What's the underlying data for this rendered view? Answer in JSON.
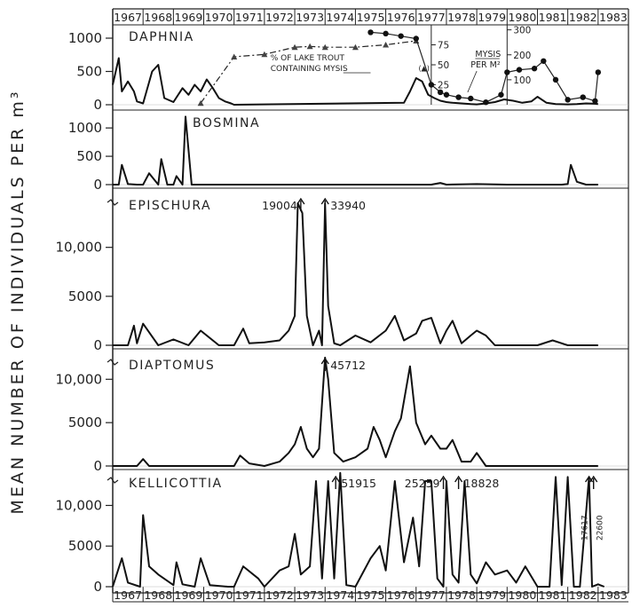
{
  "chart_data": {
    "type": "line",
    "ylabel": "MEAN NUMBER OF INDIVIDUALS PER m³",
    "years": [
      "1967",
      "1968",
      "1969",
      "1970",
      "1971",
      "1972",
      "1973",
      "1974",
      "1975",
      "1976",
      "1977",
      "1978",
      "1979",
      "1980",
      "1981",
      "1982",
      "1983"
    ],
    "panels": [
      {
        "name": "DAPHNIA",
        "ylim": [
          0,
          1200
        ],
        "yticks": [
          0,
          500,
          1000
        ],
        "ytick_labels": [
          "0",
          "500",
          "1000"
        ],
        "x": [
          1967.0,
          1967.2,
          1967.3,
          1967.5,
          1967.7,
          1967.8,
          1968.0,
          1968.3,
          1968.5,
          1968.7,
          1969.0,
          1969.3,
          1969.5,
          1969.7,
          1969.9,
          1970.1,
          1970.3,
          1970.5,
          1970.7,
          1970.9,
          1971.0,
          1976.6,
          1976.8,
          1977.0,
          1977.2,
          1977.4,
          1977.6,
          1977.8,
          1978.0,
          1978.2,
          1978.5,
          1978.8,
          1979.0,
          1979.3,
          1979.6,
          1979.9,
          1980.2,
          1980.5,
          1980.8,
          1981.0,
          1981.3,
          1981.6,
          1982.0,
          1982.3,
          1982.6,
          1982.9,
          1983.0
        ],
        "y": [
          300,
          700,
          200,
          350,
          200,
          50,
          20,
          500,
          600,
          100,
          40,
          250,
          150,
          300,
          200,
          380,
          250,
          100,
          50,
          20,
          0,
          30,
          200,
          400,
          350,
          150,
          100,
          60,
          40,
          30,
          20,
          10,
          5,
          20,
          40,
          80,
          60,
          30,
          50,
          120,
          30,
          10,
          5,
          10,
          20,
          15,
          10
        ],
        "series_name": "",
        "overlays": [
          {
            "name": "% OF LAKE TROUT CONTAINING MYSIS",
            "axis_label": "(▲)",
            "axis_ticks": [
              25,
              50,
              75
            ],
            "x": [
              1969.9,
              1971.0,
              1972.0,
              1973.0,
              1973.5,
              1974.0,
              1975.0,
              1976.0,
              1977.0
            ],
            "y": [
              2,
              60,
              63,
              72,
              73,
              72,
              72,
              75,
              80
            ]
          },
          {
            "name": "MYSIS PER M²",
            "axis_ticks": [
              100,
              200,
              300
            ],
            "x": [
              1975.5,
              1976.0,
              1976.5,
              1977.0,
              1977.5,
              1977.8,
              1978.0,
              1978.4,
              1978.8,
              1979.3,
              1979.8,
              1980.0,
              1980.4,
              1980.9,
              1981.2,
              1981.6,
              1982.0,
              1982.5,
              1982.9,
              1983.0
            ],
            "y": [
              290,
              285,
              275,
              265,
              80,
              50,
              40,
              30,
              25,
              10,
              40,
              130,
              140,
              145,
              175,
              100,
              20,
              30,
              15,
              130
            ]
          }
        ],
        "annotations": [
          "% OF LAKE TROUT",
          "CONTAINING MYSIS",
          "MYSIS",
          "PER M²"
        ]
      },
      {
        "name": "BOSMINA",
        "ylim": [
          0,
          1300
        ],
        "yticks": [
          0,
          500,
          1000
        ],
        "ytick_labels": [
          "0",
          "500",
          "1000"
        ],
        "x": [
          1967.0,
          1967.2,
          1967.3,
          1967.5,
          1967.8,
          1968.0,
          1968.2,
          1968.5,
          1968.6,
          1968.8,
          1969.0,
          1969.1,
          1969.3,
          1969.4,
          1969.6,
          1970.0,
          1972.0,
          1975.0,
          1977.5,
          1977.8,
          1978.0,
          1979.0,
          1980.0,
          1981.0,
          1981.8,
          1982.0,
          1982.1,
          1982.3,
          1982.6,
          1983.0
        ],
        "y": [
          0,
          0,
          350,
          10,
          0,
          0,
          200,
          0,
          450,
          0,
          0,
          150,
          0,
          1200,
          0,
          0,
          0,
          0,
          0,
          30,
          0,
          10,
          0,
          0,
          0,
          10,
          350,
          50,
          0,
          0
        ]
      },
      {
        "name": "EPISCHURA",
        "ylim": [
          0,
          15500
        ],
        "yticks": [
          0,
          5000,
          10000
        ],
        "ytick_labels": [
          "0",
          "5000",
          "10,000"
        ],
        "x": [
          1967.0,
          1967.5,
          1967.7,
          1967.8,
          1968.0,
          1968.5,
          1969.0,
          1969.5,
          1969.9,
          1970.5,
          1971.0,
          1971.3,
          1971.5,
          1972.0,
          1972.5,
          1972.8,
          1973.0,
          1973.1,
          1973.25,
          1973.4,
          1973.6,
          1973.8,
          1973.9,
          1974.0,
          1974.1,
          1974.3,
          1974.5,
          1975.0,
          1975.5,
          1976.0,
          1976.3,
          1976.6,
          1977.0,
          1977.2,
          1977.5,
          1977.8,
          1978.0,
          1978.2,
          1978.5,
          1978.8,
          1979.0,
          1979.3,
          1979.6,
          1980.0,
          1981.0,
          1981.5,
          1982.0,
          1983.0
        ],
        "y": [
          0,
          0,
          2000,
          200,
          2200,
          0,
          600,
          0,
          1500,
          0,
          0,
          1700,
          200,
          300,
          500,
          1500,
          3000,
          14500,
          13500,
          3000,
          0,
          1500,
          0,
          14500,
          4000,
          200,
          0,
          1000,
          300,
          1500,
          3000,
          500,
          1200,
          2500,
          2800,
          200,
          1500,
          2500,
          200,
          1000,
          1500,
          1000,
          0,
          0,
          0,
          500,
          0,
          0
        ],
        "annotations": [
          {
            "label": "19004",
            "x": 1973.2
          },
          {
            "label": "33940",
            "x": 1974.0
          }
        ]
      },
      {
        "name": "DIAPTOMUS",
        "ylim": [
          0,
          13000
        ],
        "yticks": [
          0,
          5000,
          10000
        ],
        "ytick_labels": [
          "0",
          "5000",
          "10,000"
        ],
        "x": [
          1967.0,
          1967.8,
          1968.0,
          1968.2,
          1969.0,
          1970.0,
          1971.0,
          1971.2,
          1971.5,
          1972.0,
          1972.5,
          1972.8,
          1973.0,
          1973.2,
          1973.4,
          1973.6,
          1973.8,
          1974.0,
          1974.1,
          1974.3,
          1974.6,
          1975.0,
          1975.4,
          1975.6,
          1975.8,
          1976.0,
          1976.3,
          1976.5,
          1976.8,
          1977.0,
          1977.3,
          1977.5,
          1977.8,
          1978.0,
          1978.2,
          1978.5,
          1978.8,
          1979.0,
          1979.3,
          1980.0,
          1981.0,
          1983.0
        ],
        "y": [
          0,
          0,
          800,
          0,
          0,
          0,
          0,
          1200,
          300,
          0,
          500,
          1500,
          2500,
          4500,
          2000,
          1000,
          2000,
          12500,
          10000,
          1500,
          500,
          1000,
          2000,
          4500,
          3000,
          1000,
          4000,
          5500,
          11500,
          5000,
          2500,
          3500,
          2000,
          2000,
          3000,
          500,
          500,
          1500,
          0,
          0,
          0,
          0
        ],
        "annotations": [
          {
            "label": "45712",
            "x": 1974.0
          }
        ]
      },
      {
        "name": "KELLICOTTIA",
        "ylim": [
          0,
          14200
        ],
        "yticks": [
          0,
          5000,
          10000
        ],
        "ytick_labels": [
          "0",
          "5000",
          "10,000"
        ],
        "x": [
          1967.0,
          1967.3,
          1967.5,
          1967.9,
          1968.0,
          1968.2,
          1968.5,
          1969.0,
          1969.1,
          1969.3,
          1969.7,
          1969.9,
          1970.2,
          1970.8,
          1971.0,
          1971.3,
          1971.8,
          1972.0,
          1972.5,
          1972.8,
          1973.0,
          1973.2,
          1973.5,
          1973.7,
          1973.9,
          1974.1,
          1974.3,
          1974.5,
          1974.7,
          1975.0,
          1975.5,
          1975.8,
          1976.0,
          1976.3,
          1976.6,
          1976.9,
          1977.1,
          1977.3,
          1977.5,
          1977.7,
          1977.9,
          1978.0,
          1978.2,
          1978.4,
          1978.6,
          1978.8,
          1979.0,
          1979.3,
          1979.6,
          1980.0,
          1980.3,
          1980.6,
          1981.0,
          1981.4,
          1981.6,
          1981.8,
          1982.0,
          1982.2,
          1982.4,
          1982.7,
          1982.8,
          1983.0,
          1983.2
        ],
        "y": [
          0,
          3500,
          500,
          0,
          8800,
          2500,
          1500,
          200,
          3000,
          300,
          0,
          3500,
          200,
          0,
          0,
          2500,
          1000,
          0,
          2000,
          2500,
          6500,
          1500,
          2500,
          13000,
          1000,
          13000,
          1000,
          14000,
          200,
          0,
          3500,
          5000,
          2000,
          13000,
          3000,
          8500,
          2500,
          13000,
          13000,
          1000,
          0,
          13000,
          1500,
          500,
          13000,
          1500,
          400,
          3000,
          1500,
          2000,
          500,
          2500,
          0,
          0,
          13500,
          200,
          13500,
          0,
          0,
          13500,
          0,
          300,
          0
        ],
        "annotations": [
          {
            "label": "51915",
            "x": 1974.35
          },
          {
            "label": "25259",
            "x": 1977.9
          },
          {
            "label": "18828",
            "x": 1978.4
          },
          {
            "label": "17617",
            "x": 1982.7
          },
          {
            "label": "22600",
            "x": 1982.85
          }
        ]
      }
    ],
    "xlabel": "",
    "grid": false,
    "legend": "none"
  }
}
